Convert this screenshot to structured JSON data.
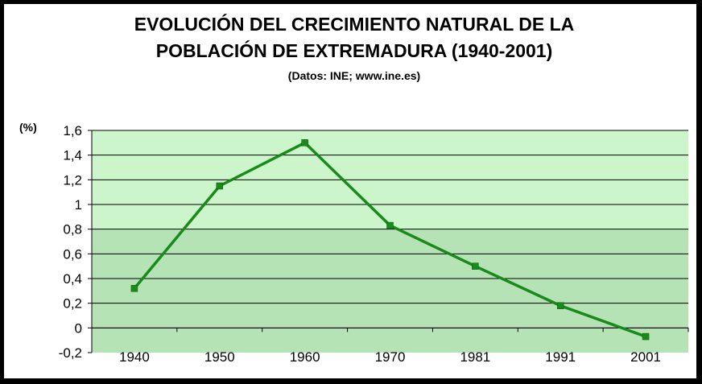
{
  "colors": {
    "background": "#000000",
    "chart_bg": "#ffffff",
    "plot_upper": "#ccf5cc",
    "plot_lower": "#b6e3b6",
    "grid": "#000000",
    "line": "#1a8a1a",
    "marker": "#1a8a1a"
  },
  "chart_data": {
    "type": "line",
    "title_line1": "EVOLUCIÓN DEL CRECIMIENTO NATURAL DE LA",
    "title_line2": "POBLACIÓN DE EXTREMADURA (1940-2001)",
    "subtitle": "(Datos: INE; www.ine.es)",
    "ylabel": "(%)",
    "xlabel": "",
    "categories": [
      "1940",
      "1950",
      "1960",
      "1970",
      "1981",
      "1991",
      "2001"
    ],
    "values": [
      0.32,
      1.15,
      1.5,
      0.83,
      0.5,
      0.18,
      -0.07
    ],
    "ylim": [
      -0.2,
      1.6
    ],
    "yticks": [
      "-0,2",
      "0",
      "0,2",
      "0,4",
      "0,6",
      "0,8",
      "1",
      "1,2",
      "1,4",
      "1,6"
    ],
    "ytick_values": [
      -0.2,
      0,
      0.2,
      0.4,
      0.6,
      0.8,
      1.0,
      1.2,
      1.4,
      1.6
    ],
    "grid": true,
    "legend": "none",
    "marker": "square"
  }
}
